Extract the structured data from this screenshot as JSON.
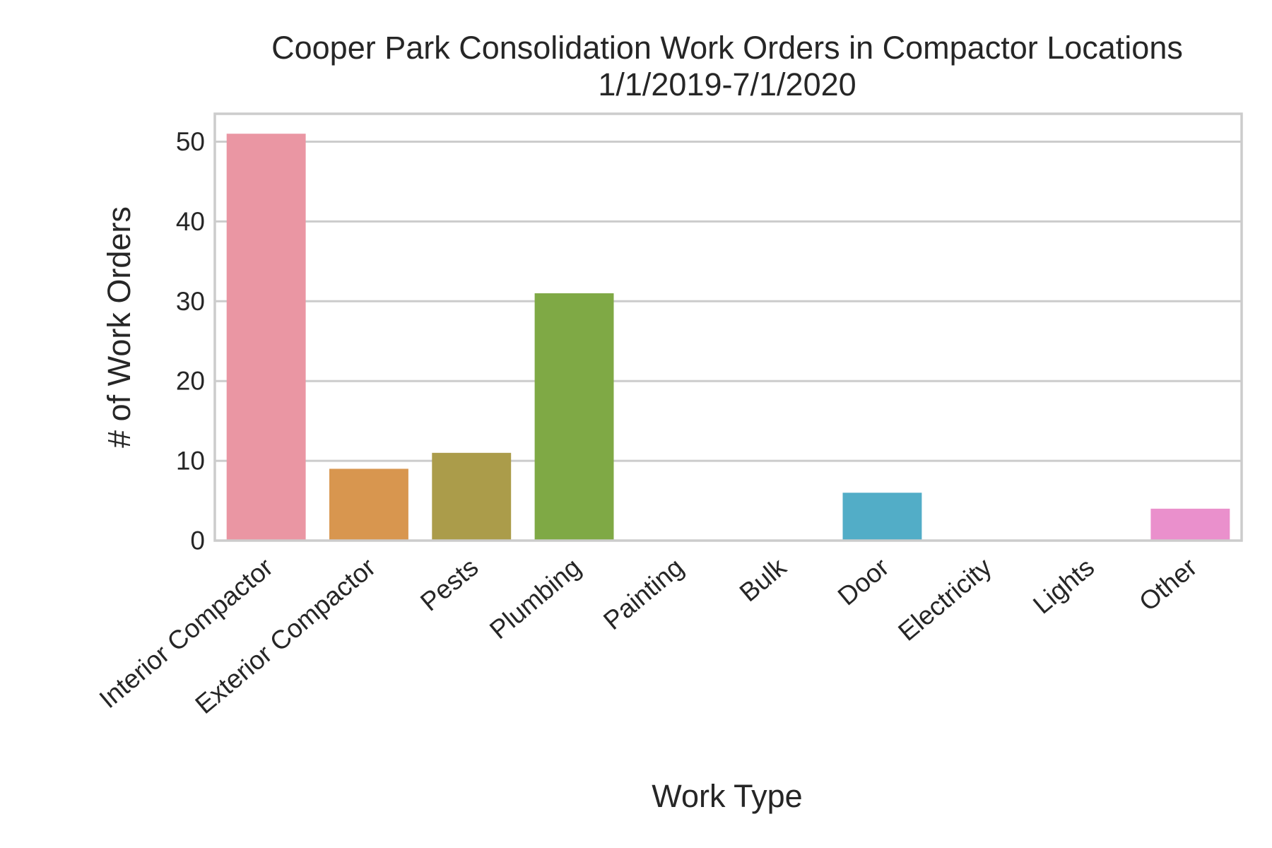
{
  "chart_data": {
    "type": "bar",
    "title": "Cooper Park Consolidation Work Orders in Compactor Locations",
    "subtitle": "1/1/2019-7/1/2020",
    "xlabel": "Work Type",
    "ylabel": "# of Work Orders",
    "categories": [
      "Interior Compactor",
      "Exterior Compactor",
      "Pests",
      "Plumbing",
      "Painting",
      "Bulk",
      "Door",
      "Electricity",
      "Lights",
      "Other"
    ],
    "values": [
      51,
      9,
      11,
      31,
      0,
      0,
      6,
      0,
      0,
      4
    ],
    "colors": [
      "#ea96a3",
      "#d8964f",
      "#ab9c4a",
      "#7fa945",
      "#4fb191",
      "#53b0ac",
      "#52adc7",
      "#a3a9e8",
      "#e089ea",
      "#ea90cc"
    ],
    "ylim": [
      0,
      53.5
    ],
    "yticks": [
      0,
      10,
      20,
      30,
      40,
      50
    ],
    "grid": true,
    "legend": "none"
  }
}
